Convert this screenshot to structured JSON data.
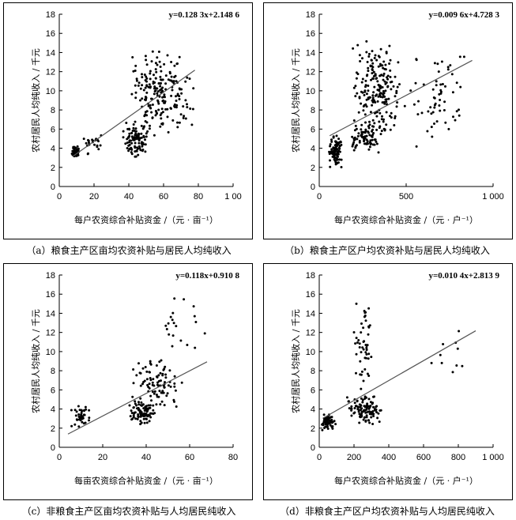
{
  "chart_data": [
    {
      "type": "scatter",
      "caption": "（a）粮食主产区亩均农资补贴与居民人均纯收入",
      "equation": "y=0.128 3x+2.148 6",
      "slope": 0.1283,
      "intercept": 2.1486,
      "xlabel": "每户农资综合补贴资金 /（元 · 亩⁻¹）",
      "ylabel": "农村居民人均纯收入 / 千元",
      "xlim": [
        0,
        100
      ],
      "ylim": [
        0,
        18
      ],
      "xticks": [
        "0",
        "20",
        "40",
        "60",
        "80",
        "1 00"
      ],
      "yticks": [
        "0",
        "2",
        "4",
        "6",
        "8",
        "10",
        "12",
        "14",
        "16",
        "18"
      ],
      "fit_x": [
        8,
        78
      ],
      "clusters": [
        {
          "x": [
            7,
            12
          ],
          "y": [
            3.0,
            4.3
          ],
          "n": 40
        },
        {
          "x": [
            12,
            25
          ],
          "y": [
            3.3,
            5.5
          ],
          "n": 22
        },
        {
          "x": [
            36,
            52
          ],
          "y": [
            3.0,
            7.0
          ],
          "n": 110
        },
        {
          "x": [
            38,
            72
          ],
          "y": [
            5.0,
            14.5
          ],
          "n": 160
        },
        {
          "x": [
            55,
            80
          ],
          "y": [
            6.0,
            13.5
          ],
          "n": 40
        }
      ]
    },
    {
      "type": "scatter",
      "caption": "（b）粮食主产区户均农资补贴与居民人均纯收入",
      "equation": "y=0.009 6x+4.728 3",
      "slope": 0.0096,
      "intercept": 4.7283,
      "xlabel": "每户农资综合补贴资金 /（元 · 户⁻¹）",
      "ylabel": "农村居民人均纯收入 / 千元",
      "xlim": [
        0,
        1000
      ],
      "ylim": [
        0,
        18
      ],
      "xticks": [
        "0",
        "500",
        "1 000"
      ],
      "yticks": [
        "0",
        "2",
        "4",
        "6",
        "8",
        "10",
        "12",
        "14",
        "16",
        "18"
      ],
      "fit_x": [
        60,
        880
      ],
      "clusters": [
        {
          "x": [
            50,
            140
          ],
          "y": [
            1.8,
            5.5
          ],
          "n": 90
        },
        {
          "x": [
            160,
            380
          ],
          "y": [
            3.5,
            6.5
          ],
          "n": 80
        },
        {
          "x": [
            180,
            480
          ],
          "y": [
            5.0,
            15.5
          ],
          "n": 200
        },
        {
          "x": [
            450,
            880
          ],
          "y": [
            4.0,
            14.5
          ],
          "n": 60
        }
      ]
    },
    {
      "type": "scatter",
      "caption": "（c）非粮食主产区亩均农资补贴与人均居民纯收入",
      "equation": "y=0.118x+0.910 8",
      "slope": 0.118,
      "intercept": 0.9108,
      "xlabel": "每亩农资综合补贴资金 /（元 · 亩⁻¹）",
      "ylabel": "农村居民人均纯收入 / 千元",
      "xlim": [
        0,
        80
      ],
      "ylim": [
        0,
        18
      ],
      "xticks": [
        "0",
        "20",
        "40",
        "60",
        "80"
      ],
      "yticks": [
        "0",
        "2",
        "4",
        "6",
        "8",
        "10",
        "12",
        "14",
        "16",
        "18"
      ],
      "fit_x": [
        4,
        68
      ],
      "clusters": [
        {
          "x": [
            4,
            16
          ],
          "y": [
            1.6,
            4.5
          ],
          "n": 40
        },
        {
          "x": [
            32,
            45
          ],
          "y": [
            2.3,
            5.0
          ],
          "n": 90
        },
        {
          "x": [
            32,
            58
          ],
          "y": [
            4.0,
            9.5
          ],
          "n": 90
        },
        {
          "x": [
            40,
            68
          ],
          "y": [
            9.0,
            16.3
          ],
          "n": 20
        }
      ]
    },
    {
      "type": "scatter",
      "caption": "（d）非粮食主产区户均农资补贴与人均居民纯收入",
      "equation": "y=0.010 4x+2.813 9",
      "slope": 0.0104,
      "intercept": 2.8139,
      "xlabel": "每户农资综合补贴资金 /（元 · 户⁻¹）",
      "ylabel": "农村居民人均纯收入 / 千元",
      "xlim": [
        0,
        1000
      ],
      "ylim": [
        0,
        18
      ],
      "xticks": [
        "0",
        "200",
        "400",
        "600",
        "800",
        "1 000"
      ],
      "yticks": [
        "0",
        "2",
        "4",
        "6",
        "8",
        "10",
        "12",
        "14",
        "16",
        "18"
      ],
      "fit_x": [
        20,
        900
      ],
      "clusters": [
        {
          "x": [
            10,
            100
          ],
          "y": [
            1.6,
            3.5
          ],
          "n": 60
        },
        {
          "x": [
            160,
            360
          ],
          "y": [
            2.3,
            5.5
          ],
          "n": 110
        },
        {
          "x": [
            180,
            320
          ],
          "y": [
            5.5,
            16.3
          ],
          "n": 50
        },
        {
          "x": [
            500,
            900
          ],
          "y": [
            5.0,
            14.0
          ],
          "n": 10
        }
      ]
    }
  ]
}
